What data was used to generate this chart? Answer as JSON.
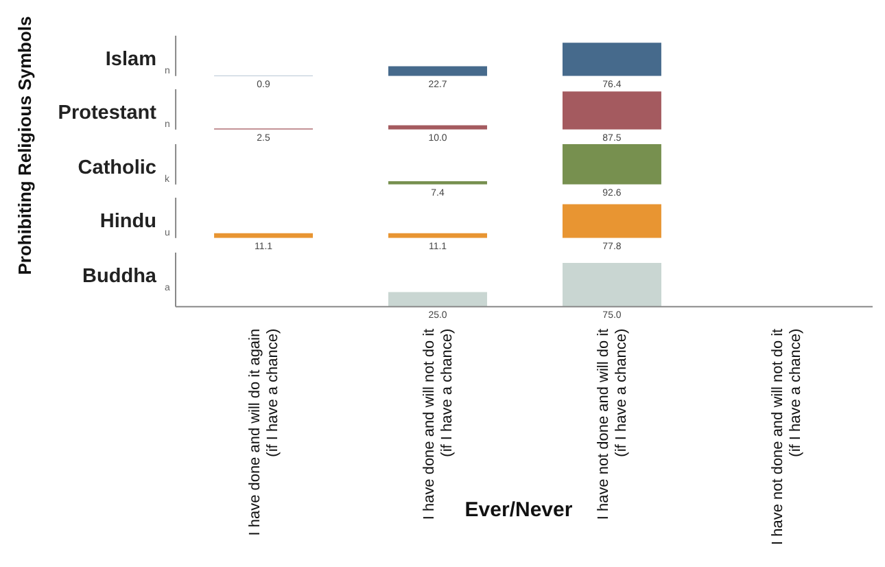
{
  "chart_data": [
    {
      "type": "bar",
      "ylabel": "Islam",
      "categories": [
        "I have done and will do it again\n(if I have a chance)",
        "I have done and will not do it\n(if I have a chance)",
        "I have not done and will  do it\n(if I have a chance)",
        "I have not done and will not do it\n(if I have a chance)"
      ],
      "values": [
        0.9,
        22.7,
        76.4,
        null
      ],
      "value_labels": [
        "0.9",
        "22.7",
        "76.4",
        null
      ],
      "color": "#466a8c",
      "tick_labels": false,
      "annotations": [
        "Prohibiting Religious Symbols",
        "n"
      ]
    },
    {
      "type": "bar",
      "ylabel": "Protestant",
      "categories": [
        "I have done and will do it again\n(if I have a chance)",
        "I have done and will not do it\n(if I have a chance)",
        "I have not done and will  do it\n(if I have a chance)",
        "I have not done and will not do it\n(if I have a chance)"
      ],
      "values": [
        2.5,
        10.0,
        87.5,
        null
      ],
      "value_labels": [
        "2.5",
        "10.0",
        "87.5",
        null
      ],
      "color": "#a45a5f",
      "tick_labels": false,
      "annotations": [
        "n"
      ]
    },
    {
      "type": "bar",
      "ylabel": "Catholic",
      "categories": [
        "I have done and will do it again\n(if I have a chance)",
        "I have done and will not do it\n(if I have a chance)",
        "I have not done and will  do it\n(if I have a chance)",
        "I have not done and will not do it\n(if I have a chance)"
      ],
      "values": [
        null,
        7.4,
        92.6,
        null
      ],
      "value_labels": [
        null,
        "7.4",
        "92.6",
        null
      ],
      "color": "#77904f",
      "tick_labels": false,
      "annotations": [
        "k"
      ]
    },
    {
      "type": "bar",
      "ylabel": "Hindu",
      "categories": [
        "I have done and will do it again\n(if I have a chance)",
        "I have done and will not do it\n(if I have a chance)",
        "I have not done and will  do it\n(if I have a chance)",
        "I have not done and will not do it\n(if I have a chance)"
      ],
      "values": [
        11.1,
        11.1,
        77.8,
        null
      ],
      "value_labels": [
        "11.1",
        "11.1",
        "77.8",
        null
      ],
      "color": "#e89532",
      "tick_labels": false,
      "annotations": [
        "u"
      ]
    },
    {
      "type": "bar",
      "ylabel": "Buddha",
      "xlabel": "Ever/Never",
      "categories": [
        "I have done and will do it again\n(if I have a chance)",
        "I have done and will not do it\n(if I have a chance)",
        "I have not done and will  do it\n(if I have a chance)",
        "I have not done and will not do it\n(if I have a chance)"
      ],
      "values": [
        null,
        25.0,
        75.0,
        null
      ],
      "value_labels": [
        null,
        "25.0",
        "75.0",
        null
      ],
      "color": "#c9d6d2",
      "tick_labels": "x",
      "annotations": [
        "a"
      ]
    }
  ]
}
